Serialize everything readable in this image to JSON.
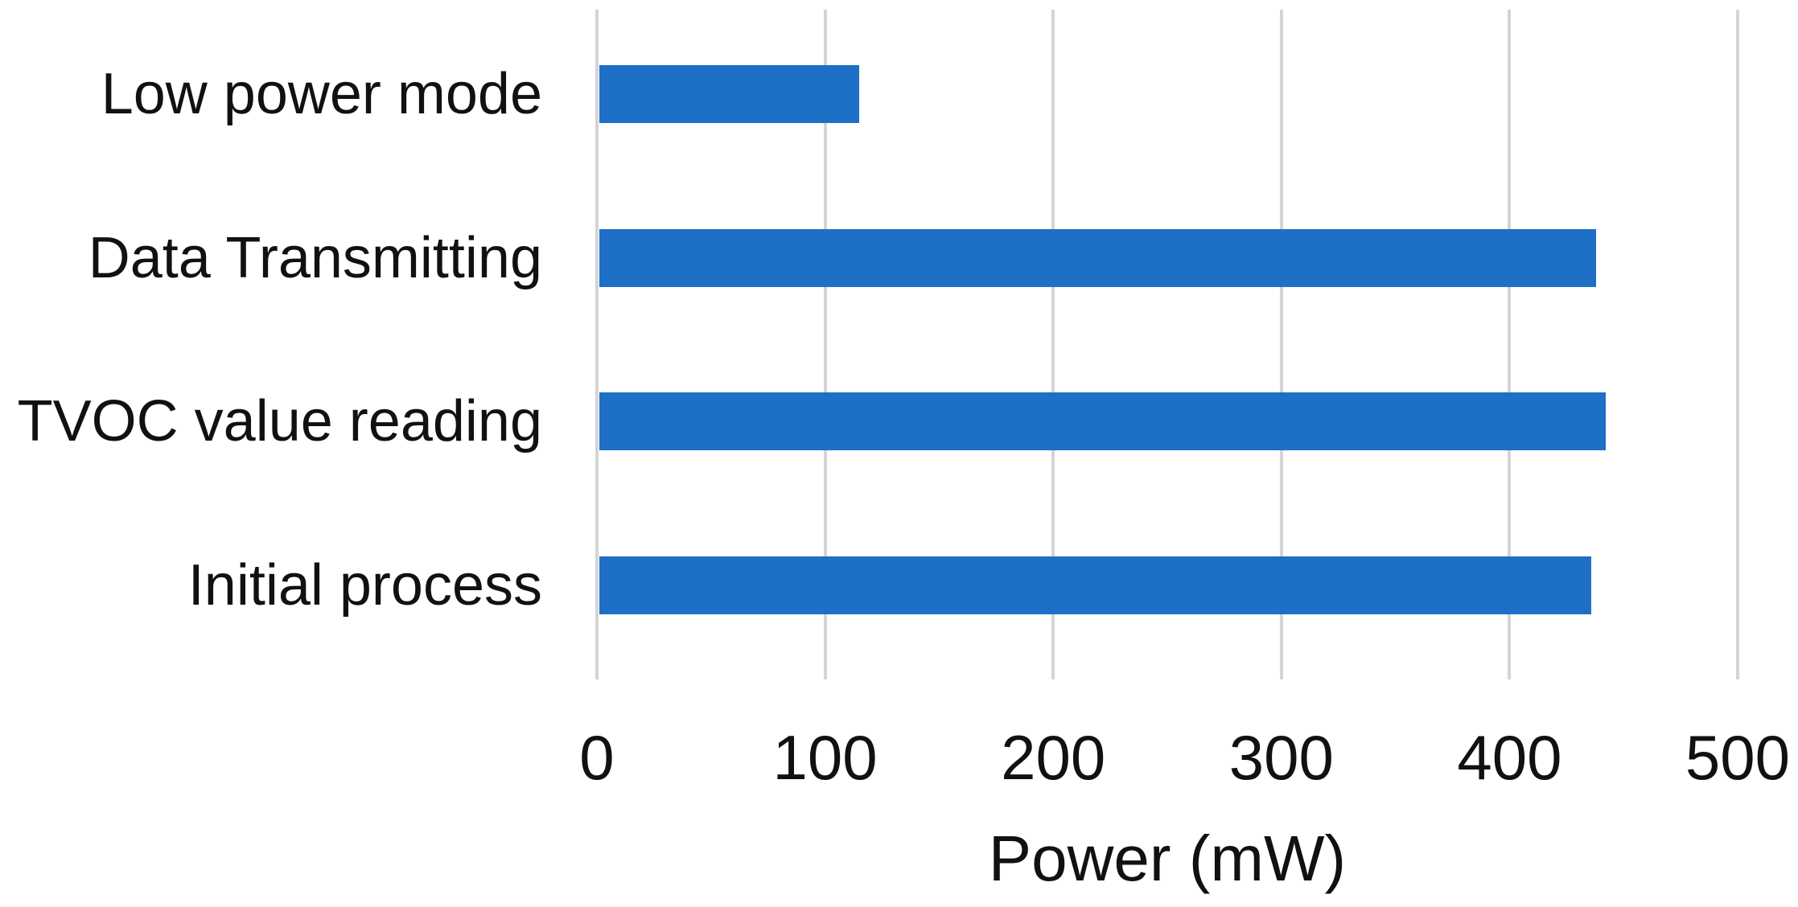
{
  "chart_data": {
    "type": "bar",
    "orientation": "horizontal",
    "title": "",
    "xlabel": "Power (mW)",
    "ylabel": "",
    "categories": [
      "Low power mode",
      "Data Transmitting",
      "TVOC value reading",
      "Initial process"
    ],
    "values": [
      115,
      438,
      442,
      436
    ],
    "xlim": [
      0,
      500
    ],
    "xticks": [
      0,
      100,
      200,
      300,
      400,
      500
    ],
    "grid": "vertical-gridlines-on",
    "legend": "none",
    "colors": {
      "bar": "#1E6FC6",
      "gridline": "#d4d4d4",
      "text": "#111111",
      "background": "#ffffff"
    }
  }
}
